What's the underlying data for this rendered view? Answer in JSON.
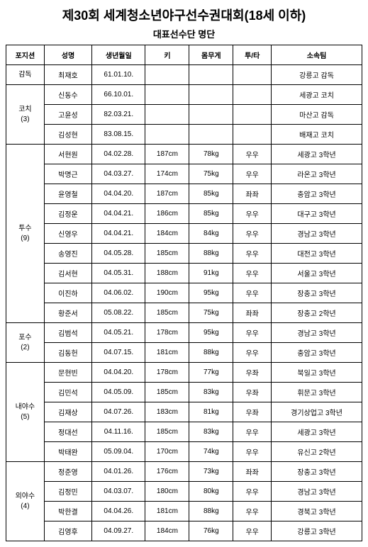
{
  "title": "제30회 세계청소년야구선수권대회(18세 이하)",
  "subtitle": "대표선수단 명단",
  "headers": {
    "position": "포지션",
    "name": "성명",
    "dob": "생년월일",
    "height": "키",
    "weight": "몸무게",
    "bat_throw": "투/타",
    "team": "소속팀"
  },
  "groups": [
    {
      "pos_label": "감독",
      "pos_count": "",
      "rows": [
        {
          "name": "최재호",
          "dob": "61.01.10.",
          "h": "",
          "w": "",
          "bt": "",
          "team": "강릉고 감독"
        }
      ]
    },
    {
      "pos_label": "코치",
      "pos_count": "(3)",
      "rows": [
        {
          "name": "신동수",
          "dob": "66.10.01.",
          "h": "",
          "w": "",
          "bt": "",
          "team": "세광고 코치"
        },
        {
          "name": "고윤성",
          "dob": "82.03.21.",
          "h": "",
          "w": "",
          "bt": "",
          "team": "마산고 감독"
        },
        {
          "name": "김성현",
          "dob": "83.08.15.",
          "h": "",
          "w": "",
          "bt": "",
          "team": "배재고 코치"
        }
      ]
    },
    {
      "pos_label": "투수",
      "pos_count": "(9)",
      "rows": [
        {
          "name": "서현원",
          "dob": "04.02.28.",
          "h": "187cm",
          "w": "78kg",
          "bt": "우우",
          "team": "세광고 3학년"
        },
        {
          "name": "박명근",
          "dob": "04.03.27.",
          "h": "174cm",
          "w": "75kg",
          "bt": "우우",
          "team": "라온고 3학년"
        },
        {
          "name": "윤영철",
          "dob": "04.04.20.",
          "h": "187cm",
          "w": "85kg",
          "bt": "좌좌",
          "team": "충암고 3학년"
        },
        {
          "name": "김정운",
          "dob": "04.04.21.",
          "h": "186cm",
          "w": "85kg",
          "bt": "우우",
          "team": "대구고 3학년"
        },
        {
          "name": "신영우",
          "dob": "04.04.21.",
          "h": "184cm",
          "w": "84kg",
          "bt": "우우",
          "team": "경남고 3학년"
        },
        {
          "name": "송영진",
          "dob": "04.05.28.",
          "h": "185cm",
          "w": "88kg",
          "bt": "우우",
          "team": "대전고 3학년"
        },
        {
          "name": "김서현",
          "dob": "04.05.31.",
          "h": "188cm",
          "w": "91kg",
          "bt": "우우",
          "team": "서울고 3학년"
        },
        {
          "name": "이진하",
          "dob": "04.06.02.",
          "h": "190cm",
          "w": "95kg",
          "bt": "우우",
          "team": "장충고 3학년"
        },
        {
          "name": "황준서",
          "dob": "05.08.22.",
          "h": "185cm",
          "w": "75kg",
          "bt": "좌좌",
          "team": "장충고 2학년"
        }
      ]
    },
    {
      "pos_label": "포수",
      "pos_count": "(2)",
      "rows": [
        {
          "name": "김범석",
          "dob": "04.05.21.",
          "h": "178cm",
          "w": "95kg",
          "bt": "우우",
          "team": "경남고 3학년"
        },
        {
          "name": "김동헌",
          "dob": "04.07.15.",
          "h": "181cm",
          "w": "88kg",
          "bt": "우우",
          "team": "충암고 3학년"
        }
      ]
    },
    {
      "pos_label": "내야수",
      "pos_count": "(5)",
      "rows": [
        {
          "name": "문현빈",
          "dob": "04.04.20.",
          "h": "178cm",
          "w": "77kg",
          "bt": "우좌",
          "team": "북일고 3학년"
        },
        {
          "name": "김민석",
          "dob": "04.05.09.",
          "h": "185cm",
          "w": "83kg",
          "bt": "우좌",
          "team": "휘문고 3학년"
        },
        {
          "name": "김재상",
          "dob": "04.07.26.",
          "h": "183cm",
          "w": "81kg",
          "bt": "우좌",
          "team": "경기상업고 3학년"
        },
        {
          "name": "정대선",
          "dob": "04.11.16.",
          "h": "185cm",
          "w": "83kg",
          "bt": "우우",
          "team": "세광고 3학년"
        },
        {
          "name": "박태완",
          "dob": "05.09.04.",
          "h": "170cm",
          "w": "74kg",
          "bt": "우우",
          "team": "유신고 2학년"
        }
      ]
    },
    {
      "pos_label": "외야수",
      "pos_count": "(4)",
      "rows": [
        {
          "name": "정준영",
          "dob": "04.01.26.",
          "h": "176cm",
          "w": "73kg",
          "bt": "좌좌",
          "team": "장충고 3학년"
        },
        {
          "name": "김정민",
          "dob": "04.03.07.",
          "h": "180cm",
          "w": "80kg",
          "bt": "우우",
          "team": "경남고 3학년"
        },
        {
          "name": "박한결",
          "dob": "04.04.26.",
          "h": "181cm",
          "w": "88kg",
          "bt": "우우",
          "team": "경북고 3학년"
        },
        {
          "name": "김영후",
          "dob": "04.09.27.",
          "h": "184cm",
          "w": "76kg",
          "bt": "우우",
          "team": "강릉고 3학년"
        }
      ]
    }
  ]
}
